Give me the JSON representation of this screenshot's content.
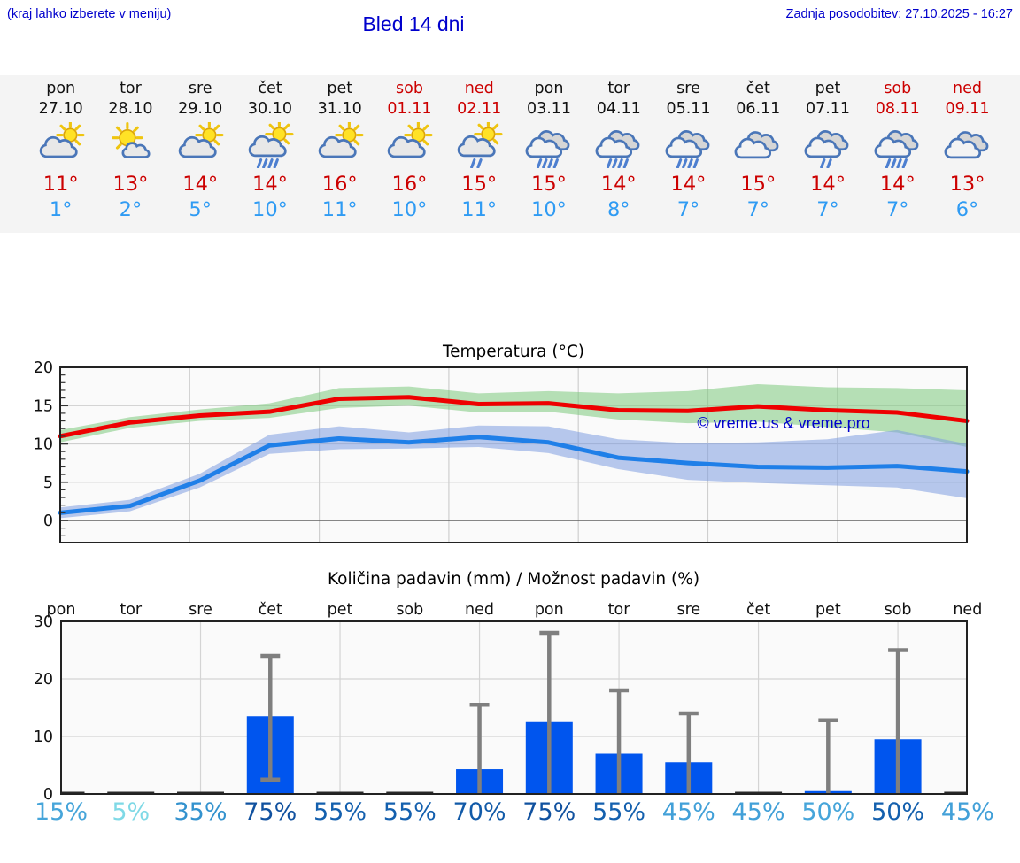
{
  "header": {
    "note": "(kraj lahko izberete v meniju)",
    "title": "Bled 14 dni",
    "last_update": "Zadnja posodobitev: 27.10.2025 - 16:27"
  },
  "forecast_strip": {
    "days": [
      {
        "name": "pon",
        "date": "27.10",
        "weekend": false,
        "icon": "sun-cloud",
        "tmax": "11°",
        "tmin": "1°"
      },
      {
        "name": "tor",
        "date": "28.10",
        "weekend": false,
        "icon": "sun-small-cloud",
        "tmax": "13°",
        "tmin": "2°"
      },
      {
        "name": "sre",
        "date": "29.10",
        "weekend": false,
        "icon": "sun-cloud",
        "tmax": "14°",
        "tmin": "5°"
      },
      {
        "name": "čet",
        "date": "30.10",
        "weekend": false,
        "icon": "sun-cloud-rain",
        "tmax": "14°",
        "tmin": "10°"
      },
      {
        "name": "pet",
        "date": "31.10",
        "weekend": false,
        "icon": "sun-cloud",
        "tmax": "16°",
        "tmin": "11°"
      },
      {
        "name": "sob",
        "date": "01.11",
        "weekend": true,
        "icon": "sun-cloud",
        "tmax": "16°",
        "tmin": "10°"
      },
      {
        "name": "ned",
        "date": "02.11",
        "weekend": true,
        "icon": "sun-cloud-light-rain",
        "tmax": "15°",
        "tmin": "11°"
      },
      {
        "name": "pon",
        "date": "03.11",
        "weekend": false,
        "icon": "cloud-rain",
        "tmax": "15°",
        "tmin": "10°"
      },
      {
        "name": "tor",
        "date": "04.11",
        "weekend": false,
        "icon": "cloud-rain",
        "tmax": "14°",
        "tmin": "8°"
      },
      {
        "name": "sre",
        "date": "05.11",
        "weekend": false,
        "icon": "cloud-rain",
        "tmax": "14°",
        "tmin": "7°"
      },
      {
        "name": "čet",
        "date": "06.11",
        "weekend": false,
        "icon": "cloud",
        "tmax": "15°",
        "tmin": "7°"
      },
      {
        "name": "pet",
        "date": "07.11",
        "weekend": false,
        "icon": "cloud-light-rain",
        "tmax": "14°",
        "tmin": "7°"
      },
      {
        "name": "sob",
        "date": "08.11",
        "weekend": true,
        "icon": "cloud-rain",
        "tmax": "14°",
        "tmin": "7°"
      },
      {
        "name": "ned",
        "date": "09.11",
        "weekend": true,
        "icon": "cloud",
        "tmax": "13°",
        "tmin": "6°"
      }
    ]
  },
  "chart_data": [
    {
      "type": "line",
      "title": "Temperatura (°C)",
      "watermark": "© vreme.us & vreme.pro",
      "watermark_color": "#0000cc",
      "categories": [
        "pon",
        "tor",
        "sre",
        "čet",
        "pet",
        "sob",
        "ned",
        "pon",
        "tor",
        "sre",
        "čet",
        "pet",
        "sob",
        "ned"
      ],
      "ylim": [
        -2.9,
        20
      ],
      "yticks": [
        0,
        5,
        10,
        15,
        20
      ],
      "grid": true,
      "series": [
        {
          "name": "max-temp",
          "color": "#ee0000",
          "values": [
            11,
            12.8,
            13.7,
            14.2,
            15.9,
            16.1,
            15.2,
            15.3,
            14.4,
            14.3,
            14.9,
            14.4,
            14.1,
            13.0
          ]
        },
        {
          "name": "min-temp",
          "color": "#1f7fe8",
          "values": [
            1.0,
            1.9,
            5.2,
            9.8,
            10.7,
            10.2,
            10.9,
            10.2,
            8.2,
            7.5,
            7.0,
            6.9,
            7.1,
            6.4
          ]
        }
      ],
      "bands": [
        {
          "name": "max-temp-range",
          "color": "#7cc87c",
          "upper": [
            11.8,
            13.5,
            14.5,
            15.3,
            17.3,
            17.5,
            16.6,
            16.9,
            16.6,
            16.9,
            17.8,
            17.4,
            17.3,
            17.0
          ],
          "lower": [
            10.2,
            12.1,
            13.0,
            13.4,
            14.7,
            15.0,
            14.1,
            14.2,
            13.2,
            12.7,
            12.9,
            12.2,
            11.5,
            9.6
          ]
        },
        {
          "name": "min-temp-range",
          "color": "#7d9ce0",
          "upper": [
            1.7,
            2.7,
            6.1,
            11.2,
            12.3,
            11.5,
            12.4,
            12.3,
            10.6,
            10.1,
            10.2,
            10.6,
            11.8,
            10.0
          ],
          "lower": [
            0.3,
            1.2,
            4.3,
            8.7,
            9.3,
            9.4,
            9.6,
            8.8,
            6.7,
            5.3,
            4.9,
            4.6,
            4.3,
            2.9
          ]
        }
      ]
    },
    {
      "type": "bar",
      "title": "Količina padavin (mm) / Možnost padavin (%)",
      "categories": [
        "pon",
        "tor",
        "sre",
        "čet",
        "pet",
        "sob",
        "ned",
        "pon",
        "tor",
        "sre",
        "čet",
        "pet",
        "sob",
        "ned"
      ],
      "ylim": [
        0,
        30
      ],
      "yticks": [
        0,
        10,
        20,
        30
      ],
      "grid": true,
      "bar_color": "#0055ee",
      "whisker_color": "#7f7f7f",
      "values": [
        0,
        0.1,
        0.1,
        13.5,
        0.1,
        0.1,
        4.3,
        12.5,
        7.0,
        5.5,
        0.1,
        0.5,
        9.5,
        0.1
      ],
      "whisker_low": [
        null,
        null,
        null,
        2.5,
        null,
        null,
        0,
        0,
        0,
        0,
        null,
        0,
        0,
        null
      ],
      "whisker_high": [
        null,
        null,
        null,
        24,
        null,
        null,
        15.5,
        28,
        18,
        14,
        null,
        12.8,
        25,
        null
      ],
      "probabilities": [
        {
          "label": "15%",
          "color": "#46a5da"
        },
        {
          "label": "5%",
          "color": "#7fd9e6"
        },
        {
          "label": "35%",
          "color": "#3392ce"
        },
        {
          "label": "75%",
          "color": "#10519f"
        },
        {
          "label": "55%",
          "color": "#1460ae"
        },
        {
          "label": "55%",
          "color": "#1460ae"
        },
        {
          "label": "70%",
          "color": "#115aa8"
        },
        {
          "label": "75%",
          "color": "#10519f"
        },
        {
          "label": "55%",
          "color": "#1460ae"
        },
        {
          "label": "45%",
          "color": "#42a0d8"
        },
        {
          "label": "45%",
          "color": "#42a0d8"
        },
        {
          "label": "50%",
          "color": "#46a5da"
        },
        {
          "label": "50%",
          "color": "#1460ae"
        },
        {
          "label": "45%",
          "color": "#42a0d8"
        }
      ]
    }
  ]
}
